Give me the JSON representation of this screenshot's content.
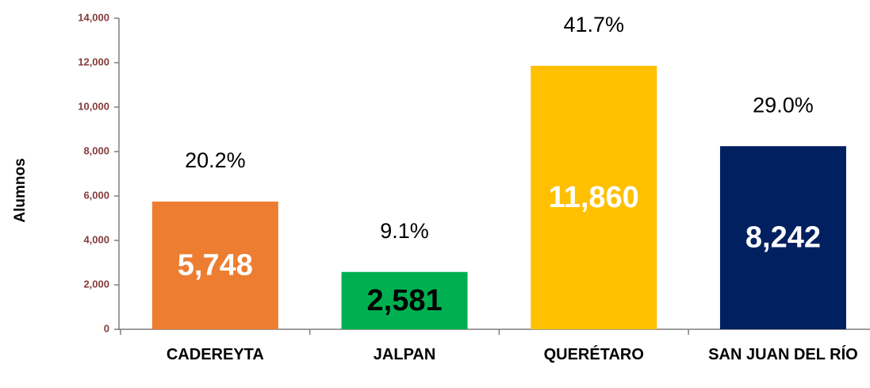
{
  "chart_data": {
    "type": "bar",
    "y_axis_label": "Alumnos",
    "categories": [
      "CADEREYTA",
      "JALPAN",
      "QUERÉTARO",
      "SAN JUAN DEL RÍO"
    ],
    "values": [
      5748,
      2581,
      11860,
      8242
    ],
    "value_labels": [
      "5,748",
      "2,581",
      "11,860",
      "8,242"
    ],
    "value_label_colors": [
      "#ffffff",
      "#000000",
      "#ffffff",
      "#ffffff"
    ],
    "colors": [
      "#ed7d31",
      "#00b050",
      "#ffc000",
      "#002060"
    ],
    "shares": [
      20.2,
      9.1,
      41.7,
      29.0
    ],
    "share_labels": [
      "20.2%",
      "9.1%",
      "41.7%",
      "29.0%"
    ],
    "ylim": [
      0,
      14000
    ],
    "yticks": [
      0,
      {
        "value": 2000,
        "label": "2,000"
      },
      {
        "value": 4000,
        "label": "4,000"
      },
      {
        "value": 6000,
        "label": "6,000"
      },
      {
        "value": 8000,
        "label": "8,000"
      },
      {
        "value": 10000,
        "label": "10,000"
      },
      {
        "value": 12000,
        "label": "12,000"
      },
      {
        "value": 14000,
        "label": "14,000"
      }
    ],
    "grid": false
  }
}
